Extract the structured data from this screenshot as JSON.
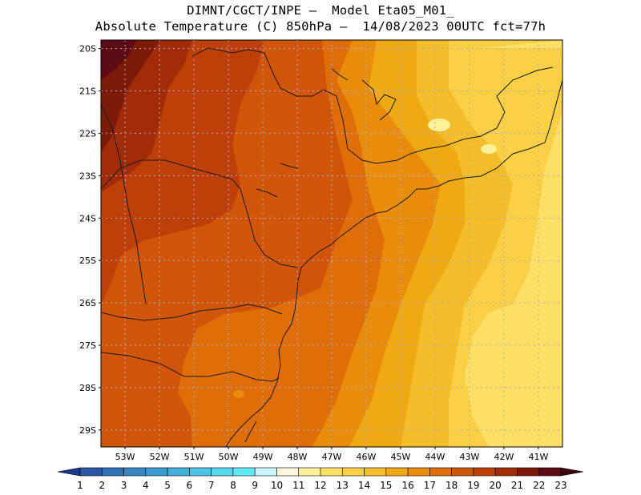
{
  "header": {
    "line1": "DIMNT/CGCT/INPE —  Model Eta05_M01_",
    "line2": "Absolute Temperature (C) 850hPa —  14/08/2023 00UTC fct=77h"
  },
  "map": {
    "lon_range": [
      -53.7,
      -40.3
    ],
    "lat_range": [
      -29.4,
      -19.8
    ],
    "lat_ticks": [
      "20S",
      "21S",
      "22S",
      "23S",
      "24S",
      "25S",
      "26S",
      "27S",
      "28S",
      "29S"
    ],
    "lon_ticks": [
      "53W",
      "52W",
      "51W",
      "50W",
      "49W",
      "48W",
      "47W",
      "46W",
      "45W",
      "44W",
      "43W",
      "42W",
      "41W"
    ]
  },
  "colorbar": {
    "labels": [
      "1",
      "2",
      "3",
      "4",
      "5",
      "6",
      "7",
      "8",
      "9",
      "10",
      "11",
      "12",
      "13",
      "14",
      "15",
      "16",
      "17",
      "18",
      "19",
      "20",
      "21",
      "22",
      "23"
    ],
    "colors": [
      "#1c3a8c",
      "#2a58a6",
      "#3170b5",
      "#3a85c3",
      "#3e9ad1",
      "#45afdc",
      "#4cc4e6",
      "#56d8ee",
      "#60eaf8",
      "#cdf5fb",
      "#fff8dc",
      "#fff09a",
      "#ffe066",
      "#fbd046",
      "#f5bd2a",
      "#efa912",
      "#e98c0a",
      "#df6e08",
      "#d15508",
      "#be3f08",
      "#a22c08",
      "#7e1a0a",
      "#5c0a14",
      "#3e0010"
    ]
  }
}
